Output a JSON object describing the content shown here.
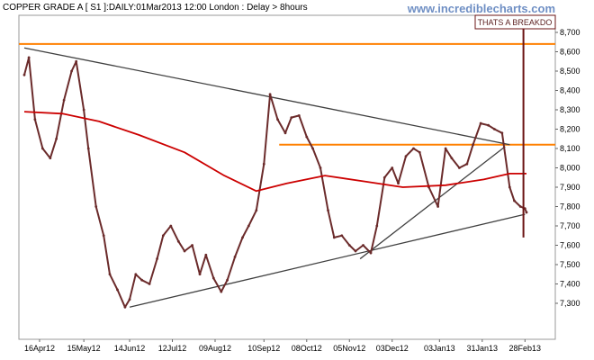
{
  "header": {
    "title": "COPPER GRADE A [ S1 ]:DAILY:01Mar2013 12:00 London : Delay > 8hours",
    "watermark": "www.incrediblecharts.com"
  },
  "annotation": {
    "label": "THATS A BREAKDO"
  },
  "colors": {
    "price": "#6b2b2b",
    "ma": "#cc0000",
    "resistance": "#ff8000",
    "trendline": "#404040",
    "annotation": "#6b1414"
  },
  "chart_data": {
    "type": "line",
    "x_tick_labels": [
      "16Apr12",
      "15May12",
      "14Jun12",
      "12Jul12",
      "09Aug12",
      "10Sep12",
      "08Oct12",
      "05Nov12",
      "03Dec12",
      "03Jan13",
      "31Jan13",
      "28Feb13"
    ],
    "y_tick_labels": [
      "7,300",
      "7,400",
      "7,500",
      "7,600",
      "7,700",
      "7,800",
      "7,900",
      "8,000",
      "8,100",
      "8,200",
      "8,300",
      "8,400",
      "8,500",
      "8,600",
      "8,700"
    ],
    "ylim": [
      7230,
      8780
    ],
    "series": [
      {
        "type": "price",
        "x": [
          "2012-04-06",
          "2012-04-09",
          "2012-04-13",
          "2012-04-18",
          "2012-04-23",
          "2012-04-27",
          "2012-05-02",
          "2012-05-07",
          "2012-05-10",
          "2012-05-15",
          "2012-05-18",
          "2012-05-23",
          "2012-05-28",
          "2012-06-01",
          "2012-06-06",
          "2012-06-11",
          "2012-06-14",
          "2012-06-18",
          "2012-06-22",
          "2012-06-27",
          "2012-07-02",
          "2012-07-06",
          "2012-07-11",
          "2012-07-16",
          "2012-07-20",
          "2012-07-25",
          "2012-07-30",
          "2012-08-03",
          "2012-08-08",
          "2012-08-13",
          "2012-08-17",
          "2012-08-22",
          "2012-08-27",
          "2012-08-31",
          "2012-09-05",
          "2012-09-10",
          "2012-09-14",
          "2012-09-19",
          "2012-09-24",
          "2012-09-28",
          "2012-10-03",
          "2012-10-08",
          "2012-10-12",
          "2012-10-17",
          "2012-10-22",
          "2012-10-26",
          "2012-10-31",
          "2012-11-05",
          "2012-11-09",
          "2012-11-14",
          "2012-11-19",
          "2012-11-23",
          "2012-11-28",
          "2012-12-03",
          "2012-12-07",
          "2012-12-12",
          "2012-12-17",
          "2012-12-21",
          "2012-12-27",
          "2013-01-02",
          "2013-01-07",
          "2013-01-11",
          "2013-01-16",
          "2013-01-21",
          "2013-01-25",
          "2013-01-30",
          "2013-02-04",
          "2013-02-08",
          "2013-02-13",
          "2013-02-18",
          "2013-02-21",
          "2013-02-25",
          "2013-02-28",
          "2013-03-01"
        ],
        "values": [
          8480,
          8570,
          8250,
          8100,
          8050,
          8150,
          8350,
          8500,
          8550,
          8300,
          8100,
          7800,
          7650,
          7450,
          7370,
          7280,
          7320,
          7450,
          7420,
          7400,
          7530,
          7650,
          7700,
          7620,
          7570,
          7600,
          7450,
          7550,
          7430,
          7360,
          7420,
          7540,
          7640,
          7700,
          7780,
          8020,
          8380,
          8250,
          8180,
          8260,
          8270,
          8160,
          8100,
          8000,
          7780,
          7640,
          7650,
          7600,
          7570,
          7600,
          7560,
          7700,
          7950,
          8000,
          7920,
          8060,
          8100,
          8080,
          7900,
          7800,
          8100,
          8050,
          8000,
          8020,
          8120,
          8230,
          8220,
          8200,
          8180,
          7900,
          7830,
          7800,
          7790,
          7770
        ]
      },
      {
        "type": "moving-average",
        "x": [
          "2012-04-06",
          "2012-05-01",
          "2012-05-25",
          "2012-06-20",
          "2012-07-20",
          "2012-08-15",
          "2012-09-05",
          "2012-09-25",
          "2012-10-20",
          "2012-11-15",
          "2012-12-10",
          "2013-01-07",
          "2013-02-01",
          "2013-02-18",
          "2013-03-01"
        ],
        "values": [
          8290,
          8280,
          8240,
          8170,
          8080,
          7960,
          7880,
          7920,
          7960,
          7930,
          7900,
          7910,
          7940,
          7970,
          7970
        ]
      }
    ],
    "reference_lines": [
      {
        "type": "resistance",
        "value": 8640
      },
      {
        "type": "resistance",
        "x_start": "2012-09-20",
        "value": 8120
      }
    ],
    "trend_lines": [
      {
        "x": [
          "2012-04-06",
          "2013-02-18"
        ],
        "values": [
          8620,
          8120
        ]
      },
      {
        "x": [
          "2012-06-14",
          "2013-02-28"
        ],
        "values": [
          7280,
          7760
        ]
      },
      {
        "x": [
          "2012-11-12",
          "2013-02-15"
        ],
        "values": [
          7530,
          8110
        ]
      }
    ],
    "annotation_line": {
      "x": "2013-02-27",
      "values": [
        8780,
        7640
      ]
    }
  }
}
